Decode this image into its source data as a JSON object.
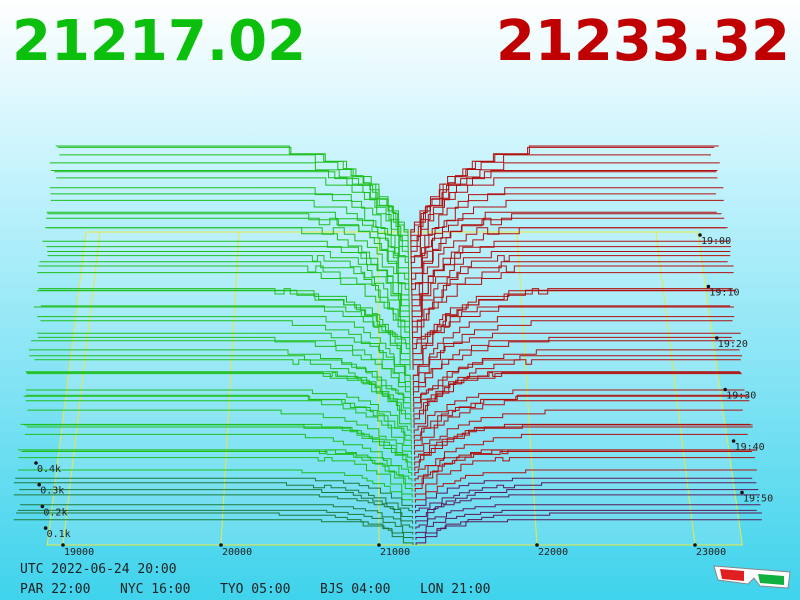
{
  "header": {
    "bid": "21217.02",
    "ask": "21233.32"
  },
  "axes": {
    "price_ticks": [
      "19000",
      "20000",
      "21000",
      "22000",
      "23000"
    ],
    "time_ticks": [
      "19:00",
      "19:10",
      "19:20",
      "19:30",
      "19:40",
      "19:50"
    ],
    "depth_ticks": [
      "0.4k",
      "0.3k",
      "0.2k",
      "0.1k"
    ]
  },
  "footer": {
    "utc": "UTC 2022-06-24 20:00",
    "clocks": [
      "PAR 22:00",
      "NYC 16:00",
      "TYO 05:00",
      "BJS 04:00",
      "LON 21:00"
    ]
  }
}
